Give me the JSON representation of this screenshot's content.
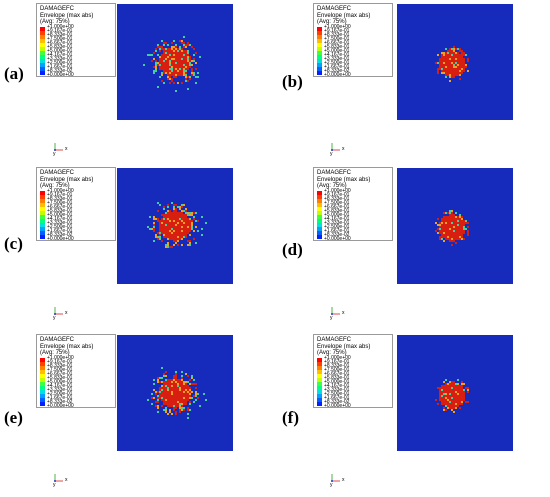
{
  "panels": [
    {
      "id": "a",
      "label": "(a)",
      "spread": "wide"
    },
    {
      "id": "b",
      "label": "(b)",
      "spread": "compact"
    },
    {
      "id": "c",
      "label": "(c)",
      "spread": "wide"
    },
    {
      "id": "d",
      "label": "(d)",
      "spread": "compact"
    },
    {
      "id": "e",
      "label": "(e)",
      "spread": "wide"
    },
    {
      "id": "f",
      "label": "(f)",
      "spread": "compact"
    }
  ],
  "legend": {
    "title_line1": "DAMAGEFC",
    "title_line2": "Envelope (max abs)",
    "title_line3": "(Avg: 75%)",
    "ticks": [
      "+1.000e+00",
      "+9.167e-01",
      "+8.333e-01",
      "+7.500e-01",
      "+6.667e-01",
      "+5.833e-01",
      "+5.000e-01",
      "+4.167e-01",
      "+3.333e-01",
      "+2.500e-01",
      "+1.667e-01",
      "+8.333e-02",
      "+0.000e+00"
    ],
    "colors": [
      "#ff0000",
      "#ff4000",
      "#ff8000",
      "#ffbf00",
      "#ffff00",
      "#bfff00",
      "#40ff40",
      "#00ff80",
      "#00e0e0",
      "#00a0ff",
      "#0060ff",
      "#0020ff"
    ]
  },
  "field_colors": {
    "background": "#1a2fc8",
    "damage_high": "#d81e10",
    "damage_mid": "#f0a020",
    "damage_low": "#40d0a0"
  },
  "axis_triad": {
    "y_label": "y",
    "x_label": "x"
  }
}
